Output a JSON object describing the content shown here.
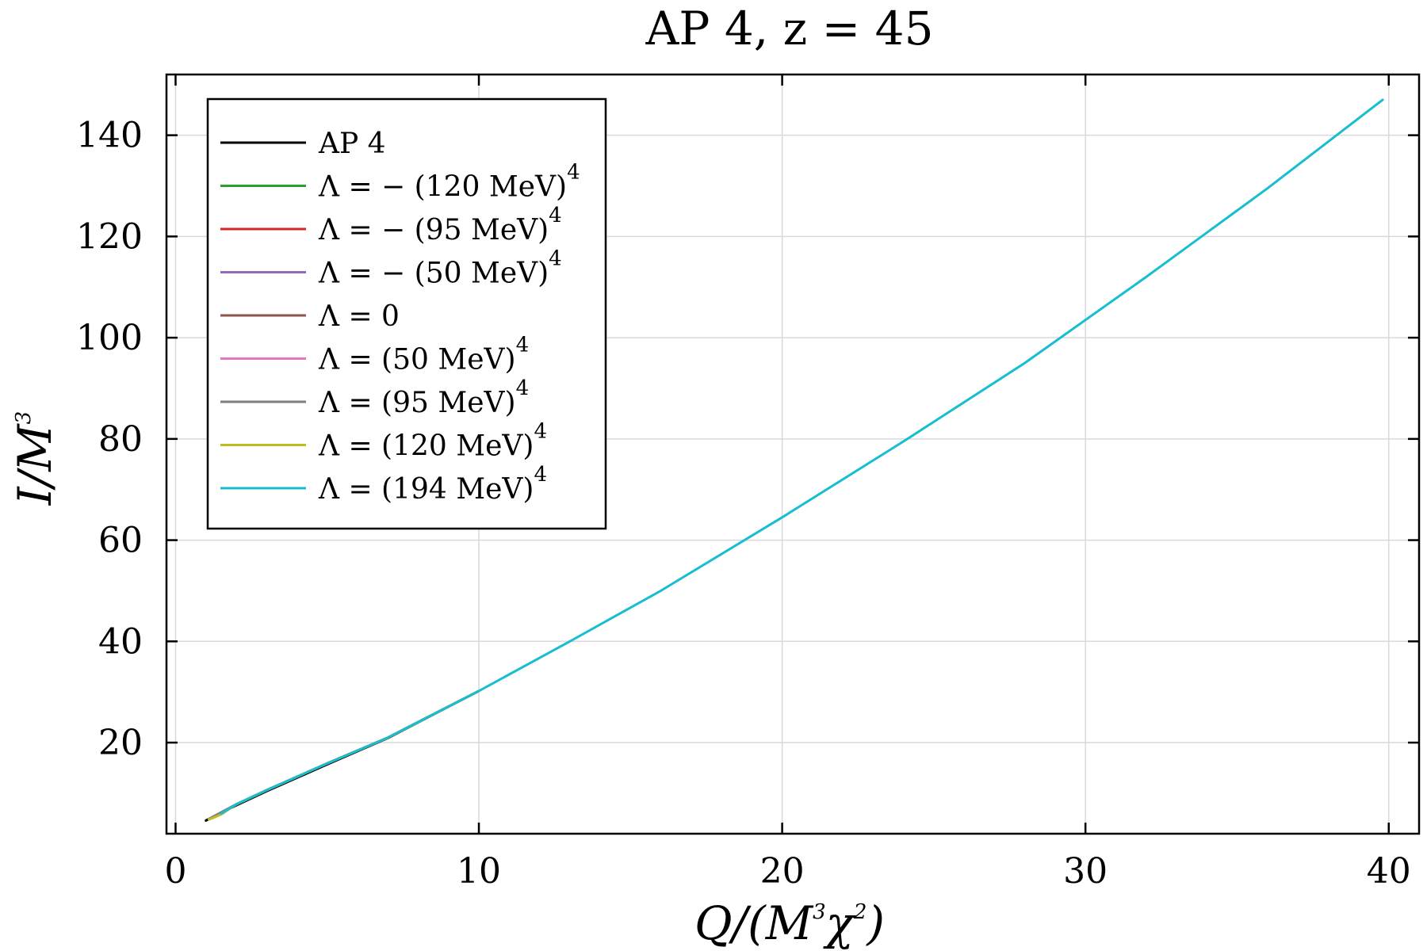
{
  "chart_data": {
    "type": "line",
    "title": "AP 4,  z = 45",
    "xlabel": "Q/(M^3 χ^2)",
    "ylabel": "I/M^3",
    "xlim": [
      -0.3,
      41
    ],
    "ylim": [
      2,
      152
    ],
    "xticks": [
      0,
      10,
      20,
      30,
      40
    ],
    "yticks": [
      20,
      40,
      60,
      80,
      100,
      120,
      140
    ],
    "grid": true,
    "legend_position": "top-left",
    "series": [
      {
        "name": "AP 4",
        "label_main": "AP 4",
        "label_sup": "",
        "color": "#000000",
        "x": [
          1.0,
          2.0,
          3.0,
          5.0,
          7.0,
          10.0
        ],
        "y": [
          4.6,
          7.6,
          10.4,
          15.7,
          20.9,
          30.2
        ]
      },
      {
        "name": "Λ = −(120 MeV)^4",
        "label_main": "Λ =  − (120 MeV)",
        "label_sup": "4",
        "color": "#2ca02c",
        "x": [
          1.1,
          2.0,
          3.0,
          5.0,
          7.0,
          10.0
        ],
        "y": [
          4.9,
          7.8,
          10.6,
          15.9,
          21.0,
          30.2
        ]
      },
      {
        "name": "Λ = −(95 MeV)^4",
        "label_main": "Λ =  − (95 MeV)",
        "label_sup": "4",
        "color": "#d62728",
        "x": [
          1.1,
          2.0,
          3.0,
          5.0,
          7.0,
          10.0
        ],
        "y": [
          4.9,
          7.8,
          10.6,
          15.9,
          21.0,
          30.2
        ]
      },
      {
        "name": "Λ = −(50 MeV)^4",
        "label_main": "Λ =  − (50 MeV)",
        "label_sup": "4",
        "color": "#9467bd",
        "x": [
          1.1,
          2.0,
          3.0,
          5.0,
          7.0,
          10.0
        ],
        "y": [
          4.9,
          7.8,
          10.6,
          15.9,
          21.0,
          30.2
        ]
      },
      {
        "name": "Λ = 0",
        "label_main": "Λ = 0",
        "label_sup": "",
        "color": "#8c564b",
        "x": [
          1.1,
          2.0,
          3.0,
          5.0,
          7.0,
          10.0
        ],
        "y": [
          4.9,
          7.8,
          10.6,
          15.9,
          21.0,
          30.2
        ]
      },
      {
        "name": "Λ = (50 MeV)^4",
        "label_main": "Λ = (50 MeV)",
        "label_sup": "4",
        "color": "#e377c2",
        "x": [
          1.1,
          2.0,
          3.0,
          5.0,
          7.0,
          10.0
        ],
        "y": [
          4.9,
          7.8,
          10.6,
          15.9,
          21.0,
          30.2
        ]
      },
      {
        "name": "Λ = (95 MeV)^4",
        "label_main": "Λ = (95 MeV)",
        "label_sup": "4",
        "color": "#7f7f7f",
        "x": [
          1.1,
          2.0,
          3.0,
          5.0,
          7.0,
          10.0
        ],
        "y": [
          4.9,
          7.8,
          10.6,
          15.9,
          21.0,
          30.2
        ]
      },
      {
        "name": "Λ = (120 MeV)^4",
        "label_main": "Λ = (120 MeV)",
        "label_sup": "4",
        "color": "#bcbd22",
        "x": [
          1.1,
          1.5,
          2.0,
          3.0,
          5.0,
          7.0,
          10.0
        ],
        "y": [
          4.8,
          5.8,
          7.8,
          10.6,
          15.9,
          21.0,
          30.2
        ]
      },
      {
        "name": "Λ = (194 MeV)^4",
        "label_main": "Λ = (194 MeV)",
        "label_sup": "4",
        "color": "#17becf",
        "x": [
          1.5,
          2.0,
          3.0,
          5.0,
          7.0,
          10.0,
          13.0,
          16.0,
          20.0,
          24.0,
          28.0,
          32.0,
          36.0,
          39.8
        ],
        "y": [
          6.0,
          7.8,
          10.6,
          15.9,
          21.0,
          30.2,
          40.0,
          50.0,
          64.5,
          79.5,
          95.0,
          112.0,
          129.5,
          147.0
        ]
      }
    ]
  }
}
